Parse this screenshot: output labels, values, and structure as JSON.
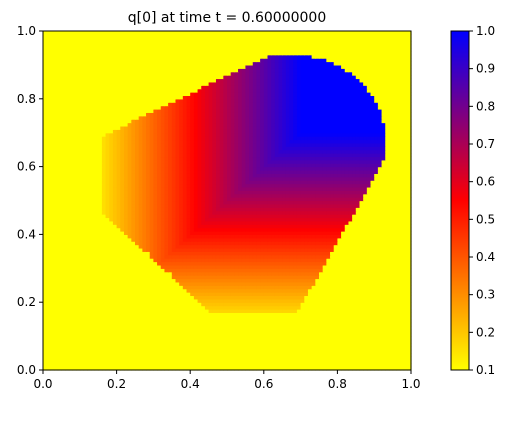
{
  "chart_data": {
    "type": "heatmap",
    "title": "q[0] at time t =     0.60000000",
    "xlabel": "",
    "ylabel": "",
    "xlim": [
      0.0,
      1.0
    ],
    "ylim": [
      0.0,
      1.0
    ],
    "x_ticks": [
      "0.0",
      "0.2",
      "0.4",
      "0.6",
      "0.8",
      "1.0"
    ],
    "y_ticks": [
      "0.0",
      "0.2",
      "0.4",
      "0.6",
      "0.8",
      "1.0"
    ],
    "colorbar": {
      "range": [
        0.1,
        1.0
      ],
      "ticks": [
        "0.1",
        "0.2",
        "0.3",
        "0.4",
        "0.5",
        "0.6",
        "0.7",
        "0.8",
        "0.9",
        "1.0"
      ],
      "colors": [
        "#ffff00",
        "#ff0000",
        "#0000ff"
      ]
    },
    "field": {
      "background_value": 0.1,
      "grid_resolution": 100,
      "region_front_quarter_circle": {
        "center": [
          0.68,
          0.68
        ],
        "radius": 0.25
      },
      "region_bounds": {
        "x_min": 0.16,
        "y_min": 0.17,
        "x_max": 0.93,
        "y_max": 0.93
      },
      "region_rear_diagonal_offset": 0.47,
      "peak_value": 1.0,
      "peak_corner": [
        0.7,
        0.7
      ],
      "ramp_start": 0.16,
      "ramp_length": 0.54
    }
  }
}
